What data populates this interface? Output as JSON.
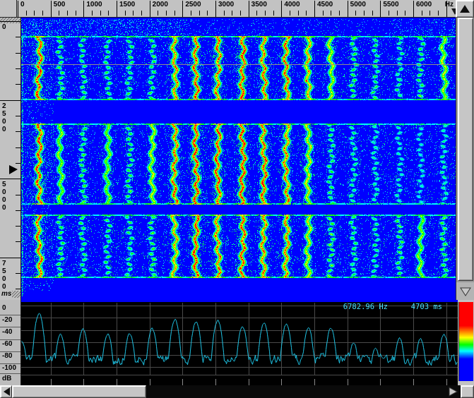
{
  "freq_ruler": {
    "unit_label": "Hz",
    "tick_labels": [
      "0",
      "500",
      "1000",
      "1500",
      "2000",
      "2500",
      "3000",
      "3500",
      "4000",
      "4500",
      "5000",
      "5500",
      "6000"
    ],
    "major_step_hz": 500,
    "minor_step_hz": 125
  },
  "time_ruler": {
    "unit_label": "ms",
    "tick_labels": [
      "0",
      "2500",
      "5000",
      "7500"
    ],
    "major_step_ms": 2500,
    "minor_step_ms": 500,
    "marker_time_ms": 4703
  },
  "db_scale": {
    "tick_labels": [
      "0",
      "-20",
      "-40",
      "-60",
      "-80",
      "-100"
    ],
    "unit_label": "dB"
  },
  "readout": {
    "frequency": "6782.96 Hz",
    "time": "4703 ms"
  },
  "colors": {
    "chrome": "#c2c2c2",
    "spectrogram_background": "#0000ff",
    "grid": "#4a4a4a",
    "grid_tick": "#8a8a8a",
    "trace": "#1fc8ea",
    "readout_text": "#4ae2ff",
    "time_cursor_line": "#90908a",
    "panel_black": "#000000",
    "panel_top_bar": "#0000f4"
  },
  "legend": {
    "gradient_top_to_bottom": [
      "#ff0000",
      "#ff8800",
      "#ffff00",
      "#00ff00",
      "#00ffff",
      "#0000ff"
    ]
  },
  "chart_data": {
    "spectrogram": {
      "type": "heatmap",
      "x_axis": {
        "label": "Hz",
        "min": 0,
        "max": 6640,
        "major_ticks": [
          0,
          500,
          1000,
          1500,
          2000,
          2500,
          3000,
          3500,
          4000,
          4500,
          5000,
          5500,
          6000
        ]
      },
      "y_axis": {
        "label": "ms",
        "min": 0,
        "max": 8850,
        "major_ticks": [
          0,
          2500,
          5000,
          7500
        ]
      },
      "colormap": "jet-blue-low-red-high",
      "time_cursor_ms": 1365,
      "marker_time_ms": 4703,
      "marker_freq_hz": 6782.96,
      "harmonics_hz": [
        320,
        645,
        985,
        1360,
        1695,
        2035,
        2380,
        2700,
        3030,
        3405,
        3730,
        4070,
        4405,
        4745,
        5090,
        5420,
        5785,
        6105,
        6460,
        6790
      ],
      "bands": [
        {
          "t0_ms": 495,
          "t1_ms": 2465,
          "harmonic_strengths": [
            0.97,
            0.55,
            0.5,
            0.52,
            0.5,
            0.55,
            0.85,
            0.95,
            0.9,
            0.97,
            0.9,
            0.95,
            0.82,
            0.7,
            0.55,
            0.5,
            0.45,
            0.55,
            0.68,
            0.72
          ]
        },
        {
          "t0_ms": 3270,
          "t1_ms": 5780,
          "harmonic_strengths": [
            0.97,
            0.6,
            0.55,
            0.6,
            0.55,
            0.68,
            0.92,
            1.0,
            0.97,
            1.0,
            0.95,
            0.88,
            0.72,
            0.5,
            0.42,
            0.38,
            0.36,
            0.32,
            0.38,
            0.42
          ]
        },
        {
          "t0_ms": 6160,
          "t1_ms": 8110,
          "harmonic_strengths": [
            0.92,
            0.55,
            0.5,
            0.5,
            0.5,
            0.55,
            0.82,
            0.95,
            0.9,
            0.95,
            0.9,
            0.88,
            0.72,
            0.58,
            0.48,
            0.44,
            0.52,
            0.62,
            0.56,
            0.5
          ]
        }
      ]
    },
    "spectrum": {
      "type": "line",
      "x_label": "Hz",
      "y_label": "dB",
      "ylim": [
        -120,
        0
      ],
      "grid": true,
      "baseline_db": -88,
      "peaks_hz_db": [
        [
          60,
          -58
        ],
        [
          320,
          -13
        ],
        [
          645,
          -47
        ],
        [
          985,
          -38
        ],
        [
          1360,
          -46
        ],
        [
          1695,
          -45
        ],
        [
          2035,
          -38
        ],
        [
          2380,
          -23
        ],
        [
          2700,
          -26
        ],
        [
          3030,
          -24
        ],
        [
          3405,
          -34
        ],
        [
          3730,
          -29
        ],
        [
          4070,
          -30
        ],
        [
          4405,
          -38
        ],
        [
          4745,
          -37
        ],
        [
          5090,
          -61
        ],
        [
          5420,
          -70
        ],
        [
          5785,
          -53
        ],
        [
          6105,
          -54
        ],
        [
          6460,
          -47
        ]
      ]
    }
  }
}
